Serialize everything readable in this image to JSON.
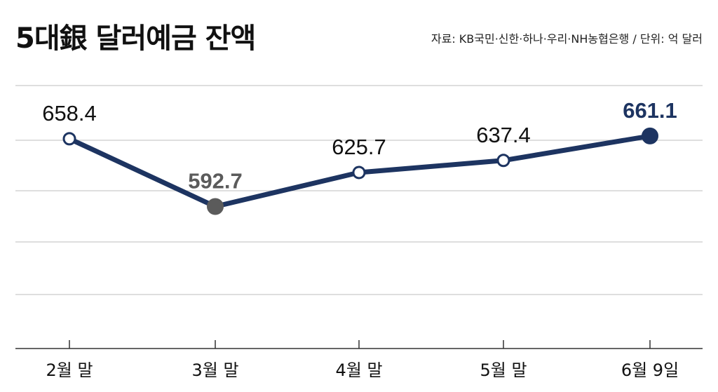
{
  "title": "5대銀 달러예금 잔액",
  "source": "자료: KB국민·신한·하나·우리·NH농협은행 / 단위: 억 달러",
  "colors": {
    "line": "#1d3461",
    "highlight_text": "#1d3461",
    "low_point": "#5b5b5b",
    "low_text": "#5b5b5b",
    "gridline": "#c9c9c9",
    "axis": "#333333"
  },
  "chart_data": {
    "type": "line",
    "title": "5대銀 달러예금 잔액",
    "categories": [
      "2월 말",
      "3월 말",
      "4월 말",
      "5월 말",
      "6월 9일"
    ],
    "values": [
      658.4,
      592.7,
      625.7,
      637.4,
      661.1
    ],
    "labels": [
      "658.4",
      "592.7",
      "625.7",
      "637.4",
      "661.1"
    ],
    "marker_styles": [
      "open",
      "filled-gray",
      "open",
      "open",
      "filled-navy"
    ],
    "ylim": [
      455,
      710
    ],
    "grid": true,
    "legend": "none",
    "xlabel": "",
    "ylabel": ""
  }
}
